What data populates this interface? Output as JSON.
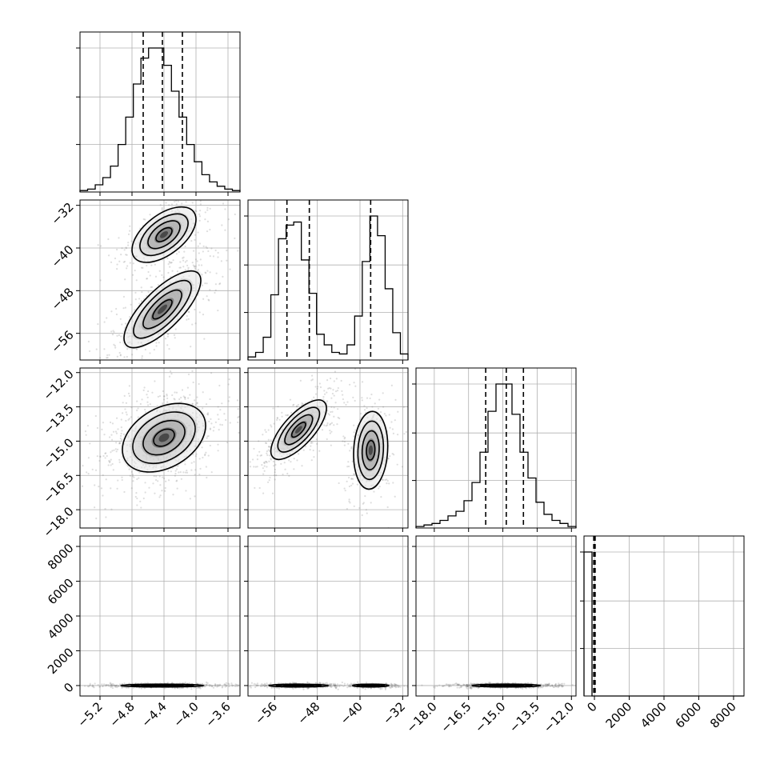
{
  "chart_data": {
    "type": "corner",
    "title": "",
    "grid": true,
    "parameters": [
      {
        "index": 0,
        "axis_label": "",
        "range": [
          -5.45,
          -3.45
        ],
        "ticks": [
          -5.2,
          -4.8,
          -4.4,
          -4.0,
          -3.6
        ],
        "tick_labels": [
          "−5.2",
          "−4.8",
          "−4.4",
          "−4.0",
          "−3.6"
        ]
      },
      {
        "index": 1,
        "axis_label": "",
        "range": [
          -61.0,
          -31.0
        ],
        "ticks": [
          -56,
          -48,
          -40,
          -32
        ],
        "tick_labels": [
          "−56",
          "−48",
          "−40",
          "−32"
        ]
      },
      {
        "index": 2,
        "axis_label": "",
        "range": [
          -18.8,
          -11.8
        ],
        "ticks": [
          -18.0,
          -16.5,
          -15.0,
          -13.5,
          -12.0
        ],
        "tick_labels": [
          "−18.0",
          "−16.5",
          "−15.0",
          "−13.5",
          "−12.0"
        ]
      },
      {
        "index": 3,
        "axis_label": "",
        "range": [
          -600,
          8600
        ],
        "ticks": [
          0,
          2000,
          4000,
          6000,
          8000
        ],
        "tick_labels": [
          "0",
          "2000",
          "4000",
          "6000",
          "8000"
        ]
      }
    ],
    "histograms": [
      {
        "param": 0,
        "counts": [
          1,
          2,
          5,
          10,
          18,
          33,
          52,
          75,
          93,
          100,
          100,
          88,
          70,
          52,
          33,
          21,
          12,
          7,
          4,
          2,
          1
        ],
        "quantiles": [
          -4.66,
          -4.42,
          -4.17
        ]
      },
      {
        "param": 1,
        "counts": [
          2,
          5,
          15,
          43,
          80,
          89,
          91,
          66,
          44,
          17,
          10,
          5,
          4,
          10,
          29,
          65,
          95,
          82,
          47,
          18,
          4
        ],
        "quantiles": [
          -53.7,
          -49.5,
          -38.0
        ]
      },
      {
        "param": 2,
        "counts": [
          1,
          2,
          3,
          5,
          8,
          11,
          18,
          30,
          50,
          77,
          95,
          95,
          75,
          50,
          33,
          17,
          9,
          5,
          3,
          1
        ],
        "quantiles": [
          -15.75,
          -14.85,
          -14.1
        ]
      },
      {
        "param": 3,
        "counts": [
          100,
          0,
          0,
          0,
          0,
          0,
          0,
          0,
          0,
          0,
          0,
          0,
          0,
          0,
          0,
          0,
          0,
          0,
          0,
          0
        ],
        "quantiles": [
          -40,
          0,
          40
        ]
      }
    ],
    "pair_clusters": [
      {
        "x_param": 0,
        "y_param": 1,
        "modes": [
          {
            "cx": -4.4,
            "cy": -37.5,
            "sx": 0.2,
            "sy": 2.6,
            "rho": 0.55,
            "weight": 0.4
          },
          {
            "cx": -4.42,
            "cy": -51.5,
            "sx": 0.24,
            "sy": 3.6,
            "rho": 0.75,
            "weight": 0.6
          }
        ]
      },
      {
        "x_param": 0,
        "y_param": 2,
        "modes": [
          {
            "cx": -4.4,
            "cy": -14.85,
            "sx": 0.26,
            "sy": 0.75,
            "rho": 0.35,
            "weight": 1.0
          }
        ]
      },
      {
        "x_param": 1,
        "y_param": 2,
        "modes": [
          {
            "cx": -51.5,
            "cy": -14.5,
            "sx": 2.6,
            "sy": 0.65,
            "rho": 0.72,
            "weight": 0.62
          },
          {
            "cx": -38.0,
            "cy": -15.4,
            "sx": 1.6,
            "sy": 0.85,
            "rho": 0.1,
            "weight": 0.38
          }
        ]
      },
      {
        "x_param": 0,
        "y_param": 3,
        "modes": [
          {
            "cx": -4.42,
            "cy": 0,
            "sx": 0.26,
            "sy": 40,
            "rho": 0.0,
            "weight": 1.0
          }
        ]
      },
      {
        "x_param": 1,
        "y_param": 3,
        "modes": [
          {
            "cx": -51.5,
            "cy": 0,
            "sx": 2.8,
            "sy": 40,
            "rho": 0.0,
            "weight": 0.62
          },
          {
            "cx": -38.0,
            "cy": 0,
            "sx": 1.7,
            "sy": 40,
            "rho": 0.0,
            "weight": 0.38
          }
        ]
      },
      {
        "x_param": 2,
        "y_param": 3,
        "modes": [
          {
            "cx": -14.85,
            "cy": 0,
            "sx": 0.75,
            "sy": 40,
            "rho": 0.0,
            "weight": 1.0
          }
        ]
      }
    ]
  }
}
